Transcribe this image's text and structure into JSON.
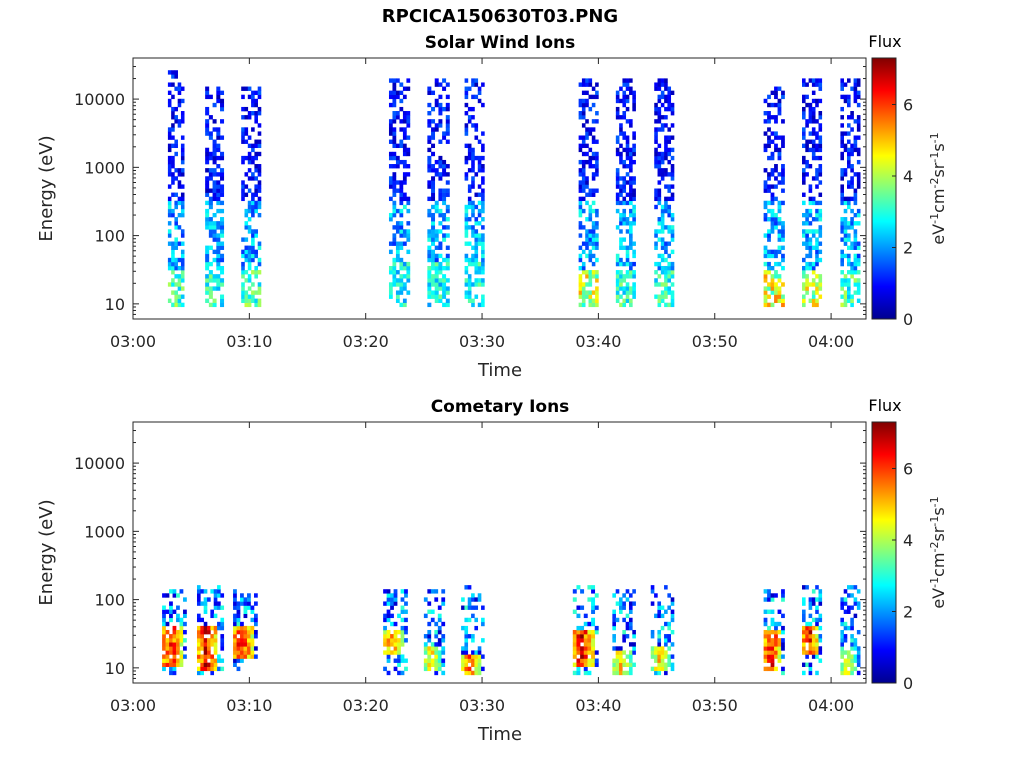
{
  "figure_title": "RPCICA150630T03.PNG",
  "colors": {
    "colormap": [
      "#00008f",
      "#0000ff",
      "#0080ff",
      "#00ffff",
      "#80ff80",
      "#ffff00",
      "#ff8000",
      "#ff0000",
      "#800000"
    ]
  },
  "chart_data": [
    {
      "type": "heatmap",
      "title": "Solar Wind Ions",
      "xlabel": "Time",
      "ylabel": "Energy (eV)",
      "x_ticks": [
        "03:00",
        "03:10",
        "03:20",
        "03:30",
        "03:40",
        "03:50",
        "04:00"
      ],
      "x_range_minutes": [
        0,
        63
      ],
      "y_scale": "log",
      "y_ticks": [
        "10",
        "100",
        "1000",
        "10000"
      ],
      "y_range": [
        6,
        40000
      ],
      "colorbar": {
        "title": "Flux",
        "label": "eV-1cm-2sr-1s-1",
        "ticks": [
          "0",
          "2",
          "4",
          "6"
        ],
        "range": [
          0,
          7.3
        ]
      },
      "series": [
        {
          "start": 3.0,
          "end": 4.4,
          "high": 25000,
          "low_level": 3.8,
          "low_energy": 30
        },
        {
          "start": 6.2,
          "end": 7.8,
          "high": 15000,
          "low_level": 3.6,
          "low_energy": 30
        },
        {
          "start": 9.3,
          "end": 11.0,
          "high": 15000,
          "low_level": 3.8,
          "low_energy": 30
        },
        {
          "start": 22.0,
          "end": 23.8,
          "high": 18000,
          "low_level": 3.2,
          "low_energy": 40
        },
        {
          "start": 25.3,
          "end": 27.2,
          "high": 20000,
          "low_level": 3.3,
          "low_energy": 40
        },
        {
          "start": 28.5,
          "end": 30.2,
          "high": 20000,
          "low_level": 3.3,
          "low_energy": 40
        },
        {
          "start": 38.3,
          "end": 40.0,
          "high": 20000,
          "low_level": 4.8,
          "low_energy": 30
        },
        {
          "start": 41.5,
          "end": 43.2,
          "high": 20000,
          "low_level": 3.6,
          "low_energy": 30
        },
        {
          "start": 44.8,
          "end": 46.5,
          "high": 20000,
          "low_level": 3.5,
          "low_energy": 30
        },
        {
          "start": 54.2,
          "end": 56.0,
          "high": 15000,
          "low_level": 5.0,
          "low_energy": 30
        },
        {
          "start": 57.5,
          "end": 59.2,
          "high": 20000,
          "low_level": 4.8,
          "low_energy": 30
        },
        {
          "start": 60.8,
          "end": 62.5,
          "high": 20000,
          "low_level": 3.8,
          "low_energy": 30
        }
      ]
    },
    {
      "type": "heatmap",
      "title": "Cometary Ions",
      "xlabel": "Time",
      "ylabel": "Energy (eV)",
      "x_ticks": [
        "03:00",
        "03:10",
        "03:20",
        "03:30",
        "03:40",
        "03:50",
        "04:00"
      ],
      "x_range_minutes": [
        0,
        63
      ],
      "y_scale": "log",
      "y_ticks": [
        "10",
        "100",
        "1000",
        "10000"
      ],
      "y_range": [
        6,
        40000
      ],
      "colorbar": {
        "title": "Flux",
        "label": "eV-1cm-2sr-1s-1",
        "ticks": [
          "0",
          "2",
          "4",
          "6"
        ],
        "range": [
          0,
          7.3
        ]
      },
      "series": [
        {
          "start": 2.5,
          "end": 4.6,
          "core_level": 6.6,
          "core_energy": [
            10,
            40
          ],
          "top_energy": 130
        },
        {
          "start": 5.5,
          "end": 7.8,
          "core_level": 6.8,
          "core_energy": [
            9,
            40
          ],
          "top_energy": 150
        },
        {
          "start": 8.6,
          "end": 10.7,
          "core_level": 6.8,
          "core_energy": [
            12,
            40
          ],
          "top_energy": 130
        },
        {
          "start": 21.5,
          "end": 23.6,
          "core_level": 5.8,
          "core_energy": [
            15,
            35
          ],
          "top_energy": 130
        },
        {
          "start": 25.0,
          "end": 26.8,
          "core_level": 5.0,
          "core_energy": [
            8,
            20
          ],
          "top_energy": 140
        },
        {
          "start": 28.2,
          "end": 30.2,
          "core_level": 6.0,
          "core_energy": [
            7,
            15
          ],
          "top_energy": 150
        },
        {
          "start": 37.8,
          "end": 40.0,
          "core_level": 6.8,
          "core_energy": [
            10,
            35
          ],
          "top_energy": 160
        },
        {
          "start": 41.2,
          "end": 43.2,
          "core_level": 5.0,
          "core_energy": [
            7,
            18
          ],
          "top_energy": 140
        },
        {
          "start": 44.5,
          "end": 46.5,
          "core_level": 5.0,
          "core_energy": [
            8,
            20
          ],
          "top_energy": 160
        },
        {
          "start": 54.2,
          "end": 56.0,
          "core_level": 6.8,
          "core_energy": [
            8,
            35
          ],
          "top_energy": 150
        },
        {
          "start": 57.5,
          "end": 59.2,
          "core_level": 6.8,
          "core_energy": [
            15,
            40
          ],
          "top_energy": 150
        },
        {
          "start": 60.8,
          "end": 62.5,
          "core_level": 4.5,
          "core_energy": [
            7,
            20
          ],
          "top_energy": 150
        }
      ]
    }
  ]
}
